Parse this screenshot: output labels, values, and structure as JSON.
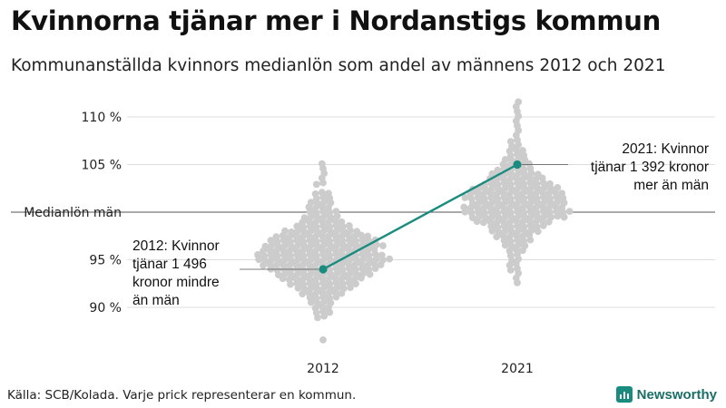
{
  "header": {
    "title": "Kvinnorna tjänar mer i Nordanstigs kommun",
    "subtitle": "Kommunanställda kvinnors medianlön som andel av männens 2012 och 2021"
  },
  "footer": {
    "source": "Källa: SCB/Kolada. Varje prick representerar en kommun.",
    "brand": "Newsworthy"
  },
  "colors": {
    "highlight": "#1a8c7f",
    "dots": "#cccccc",
    "grid": "#dddddd",
    "reference": "#555555"
  },
  "chart_data": {
    "type": "scatter",
    "x_categories": [
      "2012",
      "2021"
    ],
    "y_ticks": [
      {
        "value": 110,
        "label": "110 %"
      },
      {
        "value": 105,
        "label": "105 %"
      },
      {
        "value": 100,
        "label": "Medianlön män"
      },
      {
        "value": 95,
        "label": "95 %"
      },
      {
        "value": 90,
        "label": "90 %"
      }
    ],
    "ylim": [
      85.5,
      112
    ],
    "reference_line": 100,
    "highlight_series": {
      "points": [
        {
          "x": "2012",
          "y": 94.0
        },
        {
          "x": "2021",
          "y": 105.0
        }
      ]
    },
    "annotations": [
      {
        "x": "2012",
        "y": 94.0,
        "lines": [
          "2012: Kvinnor",
          "tjänar 1 496",
          "kronor mindre",
          "än män"
        ]
      },
      {
        "x": "2021",
        "y": 105.0,
        "lines": [
          "2021: Kvinnor",
          "tjänar 1 392 kronor",
          "mer än män"
        ]
      }
    ],
    "beeswarm": [
      {
        "x": "2012",
        "bins": [
          [
            86.5,
            1
          ],
          [
            89.0,
            2
          ],
          [
            89.5,
            3
          ],
          [
            90.0,
            3
          ],
          [
            90.5,
            4
          ],
          [
            91.0,
            5
          ],
          [
            91.5,
            7
          ],
          [
            92.0,
            9
          ],
          [
            92.5,
            11
          ],
          [
            93.0,
            13
          ],
          [
            93.5,
            15
          ],
          [
            94.0,
            17
          ],
          [
            94.5,
            19
          ],
          [
            95.0,
            21
          ],
          [
            95.5,
            20
          ],
          [
            96.0,
            18
          ],
          [
            96.5,
            19
          ],
          [
            97.0,
            17
          ],
          [
            97.5,
            15
          ],
          [
            98.0,
            12
          ],
          [
            98.5,
            9
          ],
          [
            99.0,
            7
          ],
          [
            99.5,
            6
          ],
          [
            100.0,
            5
          ],
          [
            100.5,
            4
          ],
          [
            101.0,
            4
          ],
          [
            101.5,
            3
          ],
          [
            102.0,
            3
          ],
          [
            103.0,
            2
          ],
          [
            103.5,
            1
          ],
          [
            104.0,
            1
          ],
          [
            104.5,
            1
          ],
          [
            105.0,
            1
          ]
        ]
      },
      {
        "x": "2021",
        "bins": [
          [
            92.5,
            1
          ],
          [
            93.0,
            1
          ],
          [
            93.5,
            1
          ],
          [
            94.0,
            2
          ],
          [
            94.5,
            2
          ],
          [
            95.0,
            2
          ],
          [
            95.5,
            2
          ],
          [
            96.0,
            3
          ],
          [
            96.5,
            4
          ],
          [
            97.0,
            5
          ],
          [
            97.5,
            6
          ],
          [
            98.0,
            8
          ],
          [
            98.5,
            9
          ],
          [
            99.0,
            12
          ],
          [
            99.5,
            15
          ],
          [
            100.0,
            17
          ],
          [
            100.5,
            16
          ],
          [
            101.0,
            15
          ],
          [
            101.5,
            16
          ],
          [
            102.0,
            15
          ],
          [
            102.5,
            14
          ],
          [
            103.0,
            11
          ],
          [
            103.5,
            9
          ],
          [
            104.0,
            8
          ],
          [
            104.5,
            6
          ],
          [
            105.0,
            5
          ],
          [
            105.5,
            4
          ],
          [
            106.0,
            3
          ],
          [
            106.5,
            3
          ],
          [
            107.0,
            2
          ],
          [
            107.5,
            2
          ],
          [
            108.0,
            1
          ],
          [
            108.5,
            1
          ],
          [
            109.0,
            1
          ],
          [
            109.5,
            1
          ],
          [
            110.0,
            1
          ],
          [
            110.5,
            1
          ],
          [
            111.0,
            1
          ],
          [
            111.5,
            1
          ]
        ]
      }
    ]
  }
}
